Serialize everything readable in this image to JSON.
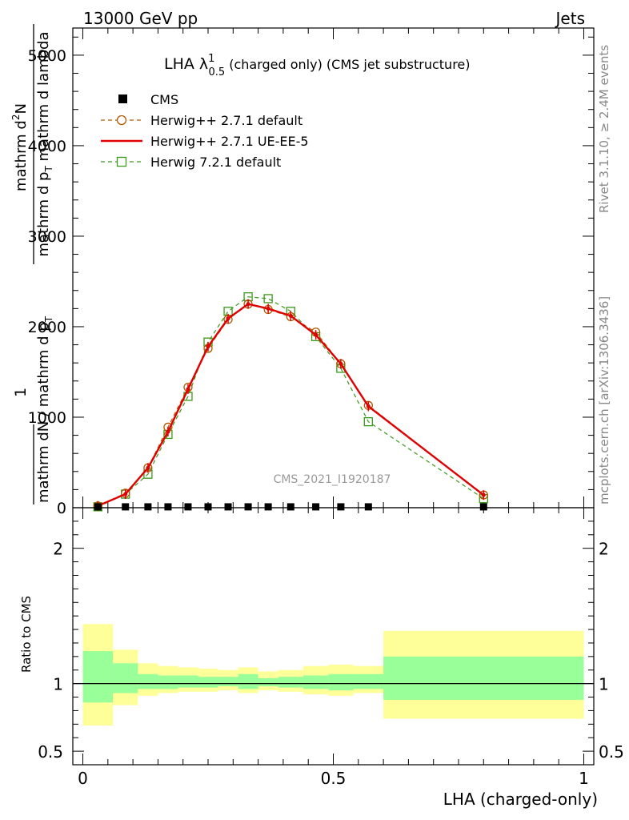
{
  "header": {
    "energy_label": "13000 GeV pp",
    "category_label": "Jets",
    "rivet_label": "Rivet 3.1.10, ≥ 2.4M events",
    "mcplots_label": "mcplots.cern.ch [arXiv:1306.3436]",
    "analysis_id": "CMS_2021_I1920187"
  },
  "chart_data": [
    {
      "type": "line",
      "title": "LHA λ",
      "title_sup": "1",
      "title_sub": "0.5",
      "title_rest": " (charged only) (CMS jet substructure)",
      "ylabel_line1": "mathrm d",
      "ylabel_line1_sup": "2",
      "ylabel_line1_end": "N",
      "ylabel_line2": "mathrm d p",
      "ylabel_line2_sub": "T",
      "ylabel_line2_end": " mathrm d lambda",
      "ylabel_prefix": "1",
      "ylabel_denom": "mathrm dN / mathrm d p",
      "ylabel_denom_sub": "T",
      "ylim": [
        0,
        5300
      ],
      "xlim": [
        -0.02,
        1.02
      ],
      "yticks": [
        0,
        1000,
        2000,
        3000,
        4000,
        5000
      ],
      "ytick_labels": [
        "0",
        "1000",
        "2000",
        "3000",
        "4000",
        "5000"
      ],
      "legend": [
        {
          "name": "CMS",
          "style": "marker-square-filled",
          "color": "#000000"
        },
        {
          "name": "Herwig++ 2.7.1 default",
          "style": "dashed-circle",
          "color": "#b05a00"
        },
        {
          "name": "Herwig++ 2.7.1 UE-EE-5",
          "style": "solid",
          "color": "#e00000"
        },
        {
          "name": "Herwig 7.2.1 default",
          "style": "dashed-square",
          "color": "#3a9a1a"
        }
      ],
      "series": [
        {
          "name": "CMS",
          "x": [
            0.03,
            0.085,
            0.13,
            0.17,
            0.21,
            0.25,
            0.29,
            0.33,
            0.37,
            0.415,
            0.465,
            0.515,
            0.57,
            0.8
          ],
          "y": [
            5,
            5,
            5,
            5,
            5,
            5,
            5,
            5,
            5,
            5,
            5,
            5,
            5,
            5
          ]
        },
        {
          "name": "Herwig++ 2.7.1 default",
          "x": [
            0.03,
            0.085,
            0.13,
            0.17,
            0.21,
            0.25,
            0.29,
            0.33,
            0.37,
            0.415,
            0.465,
            0.515,
            0.57,
            0.8
          ],
          "y": [
            20,
            160,
            440,
            890,
            1330,
            1760,
            2080,
            2250,
            2190,
            2110,
            1940,
            1590,
            1130,
            140
          ]
        },
        {
          "name": "Herwig++ 2.7.1 UE-EE-5",
          "x": [
            0.03,
            0.085,
            0.13,
            0.17,
            0.21,
            0.25,
            0.29,
            0.33,
            0.37,
            0.415,
            0.465,
            0.515,
            0.57,
            0.8
          ],
          "y": [
            20,
            150,
            440,
            840,
            1310,
            1780,
            2090,
            2250,
            2200,
            2120,
            1910,
            1590,
            1120,
            140
          ]
        },
        {
          "name": "Herwig 7.2.1 default",
          "x": [
            0.03,
            0.085,
            0.13,
            0.17,
            0.21,
            0.25,
            0.29,
            0.33,
            0.37,
            0.415,
            0.465,
            0.515,
            0.57,
            0.8
          ],
          "y": [
            10,
            150,
            370,
            810,
            1230,
            1830,
            2170,
            2330,
            2310,
            2170,
            1890,
            1540,
            950,
            100
          ]
        }
      ]
    },
    {
      "type": "area",
      "ylabel": "Ratio to CMS",
      "xlabel": "LHA (charged-only)",
      "ylim": [
        0.4,
        2.3
      ],
      "xlim": [
        -0.02,
        1.02
      ],
      "yticks": [
        0.5,
        1,
        2
      ],
      "ytick_labels": [
        "0.5",
        "1",
        "2"
      ],
      "xticks": [
        0,
        0.5,
        1
      ],
      "xtick_labels": [
        "0",
        "0.5",
        "1"
      ],
      "bands": {
        "bin_edges": [
          0.0,
          0.06,
          0.11,
          0.15,
          0.19,
          0.23,
          0.27,
          0.31,
          0.35,
          0.39,
          0.44,
          0.49,
          0.54,
          0.6,
          1.0
        ],
        "yellow_low": [
          0.69,
          0.84,
          0.91,
          0.93,
          0.94,
          0.94,
          0.95,
          0.93,
          0.95,
          0.94,
          0.92,
          0.91,
          0.93,
          0.74
        ],
        "yellow_high": [
          1.44,
          1.25,
          1.15,
          1.13,
          1.12,
          1.11,
          1.1,
          1.12,
          1.09,
          1.1,
          1.13,
          1.14,
          1.13,
          1.39
        ],
        "green_low": [
          0.86,
          0.93,
          0.96,
          0.96,
          0.97,
          0.97,
          0.98,
          0.96,
          0.98,
          0.97,
          0.96,
          0.95,
          0.96,
          0.88
        ],
        "green_high": [
          1.24,
          1.15,
          1.07,
          1.06,
          1.06,
          1.05,
          1.05,
          1.07,
          1.04,
          1.05,
          1.06,
          1.07,
          1.07,
          1.2
        ]
      },
      "reference_line": 1,
      "band_colors": {
        "yellow": "#ffff99",
        "green": "#99ff99"
      }
    }
  ]
}
